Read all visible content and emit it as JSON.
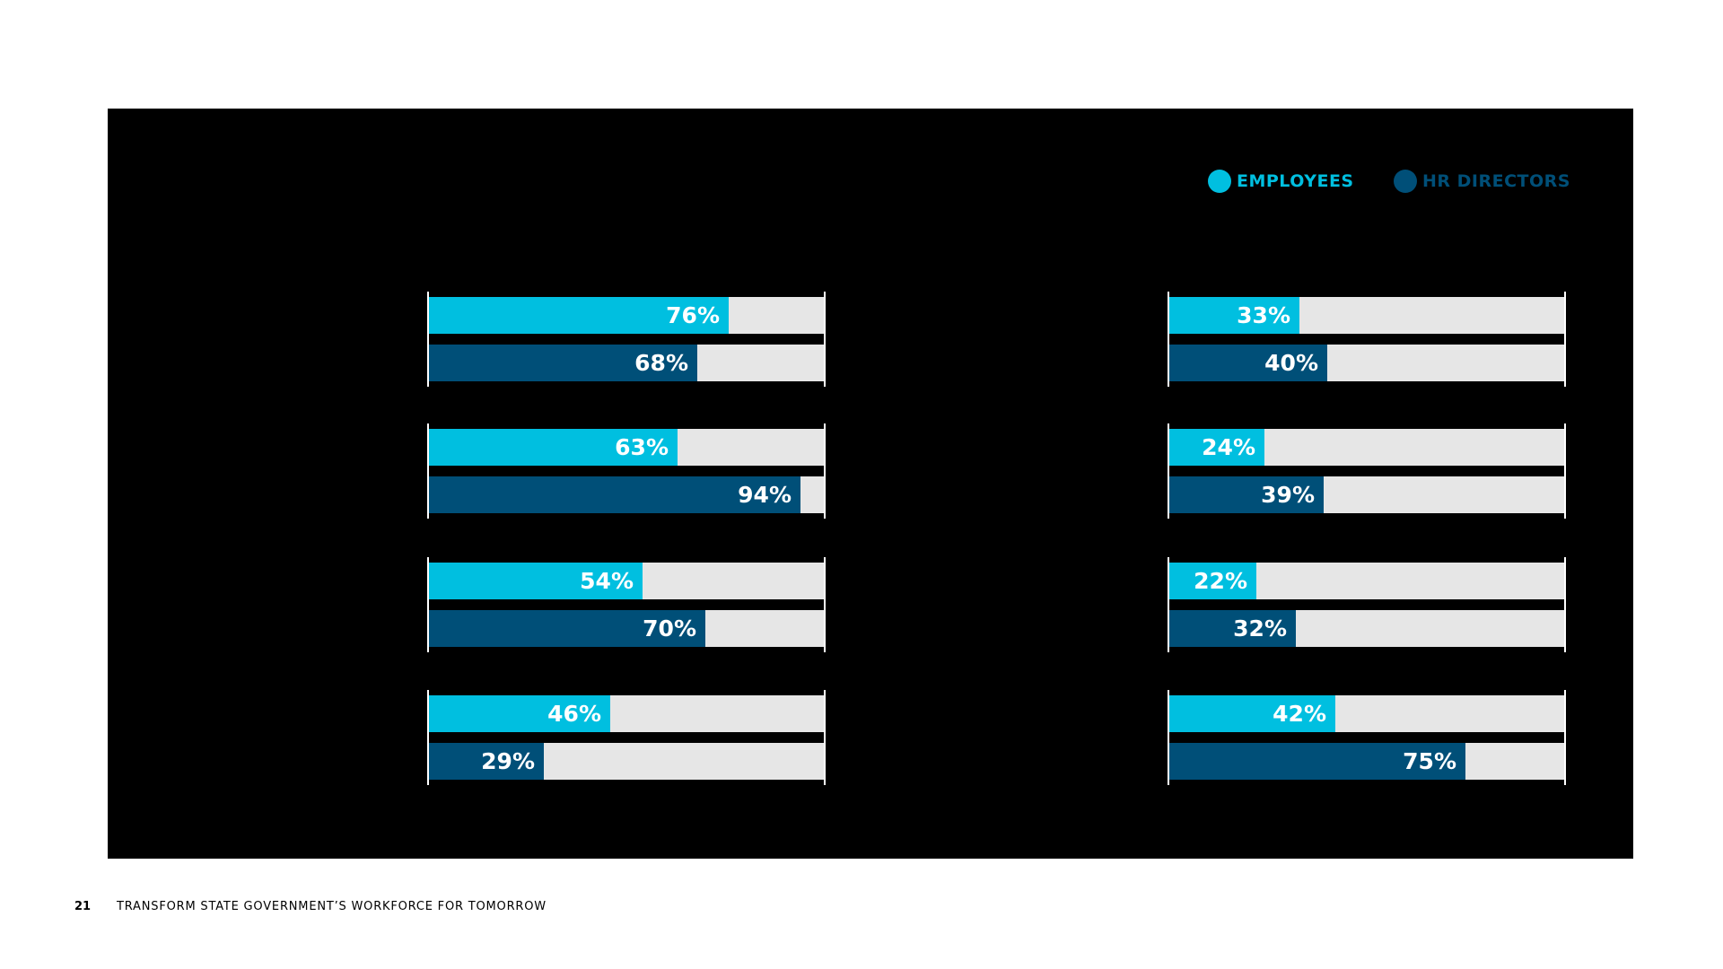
{
  "legend": {
    "employees": {
      "label": "EMPLOYEES",
      "color": "#00bfe0"
    },
    "hr_directors": {
      "label": "HR DIRECTORS",
      "color": "#004f78"
    }
  },
  "colors": {
    "panel_background": "#000000",
    "track": "#e6e6e6",
    "label_text": "#ffffff"
  },
  "footer": {
    "page_number": "21",
    "title": "TRANSFORM STATE GOVERNMENT’S WORKFORCE FOR TOMORROW"
  },
  "chart_data": [
    {
      "type": "bar",
      "orientation": "horizontal",
      "xlim": [
        0,
        100
      ],
      "series": [
        {
          "name": "EMPLOYEES",
          "values": [
            76,
            63,
            54,
            46
          ],
          "labels": [
            "76%",
            "63%",
            "54%",
            "46%"
          ]
        },
        {
          "name": "HR DIRECTORS",
          "values": [
            68,
            94,
            70,
            29
          ],
          "labels": [
            "68%",
            "94%",
            "70%",
            "29%"
          ]
        }
      ]
    },
    {
      "type": "bar",
      "orientation": "horizontal",
      "xlim": [
        0,
        100
      ],
      "series": [
        {
          "name": "EMPLOYEES",
          "values": [
            33,
            24,
            22,
            42
          ],
          "labels": [
            "33%",
            "24%",
            "22%",
            "42%"
          ]
        },
        {
          "name": "HR DIRECTORS",
          "values": [
            40,
            39,
            32,
            75
          ],
          "labels": [
            "40%",
            "39%",
            "32%",
            "75%"
          ]
        }
      ]
    }
  ]
}
